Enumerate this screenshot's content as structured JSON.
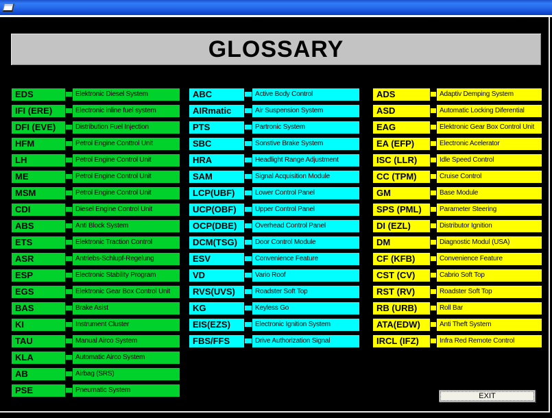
{
  "header": {
    "title": "GLOSSARY"
  },
  "colors": {
    "titlebar_blue": "#2a6fee",
    "banner_gray": "#c3c3c3",
    "column_green": "#00d22b",
    "column_cyan": "#00ffff",
    "column_yellow": "#ffff00",
    "background": "#000000"
  },
  "columns": [
    {
      "color_name": "green",
      "color_hex": "#00d22b",
      "entries": [
        {
          "abbr": "EDS",
          "desc": "Elektronic Diesel System"
        },
        {
          "abbr": "IFI (ERE)",
          "desc": "Electronic inline fuel system"
        },
        {
          "abbr": "DFI (EVE)",
          "desc": "Distribution Fuel Injection"
        },
        {
          "abbr": "HFM",
          "desc": "Petrol Engine Conttrol Unit"
        },
        {
          "abbr": "LH",
          "desc": "Petrol Engine Control Unit"
        },
        {
          "abbr": "ME",
          "desc": "Petrol Engine Control Unit"
        },
        {
          "abbr": "MSM",
          "desc": "Petrol Engine Control Unit"
        },
        {
          "abbr": "CDI",
          "desc": "Diesel Engine Control Unit"
        },
        {
          "abbr": "ABS",
          "desc": "Anti Block System"
        },
        {
          "abbr": "ETS",
          "desc": "Elektronic Traction Control"
        },
        {
          "abbr": "ASR",
          "desc": "Antriebs-Schlupf-Regelung"
        },
        {
          "abbr": "ESP",
          "desc": "Electronic Stability Program"
        },
        {
          "abbr": "EGS",
          "desc": "Elektronic Gear Box Control Unit"
        },
        {
          "abbr": "BAS",
          "desc": "Brake Asist"
        },
        {
          "abbr": "KI",
          "desc": "Instrument Cluster"
        },
        {
          "abbr": "TAU",
          "desc": "Manual Airco System"
        },
        {
          "abbr": "KLA",
          "desc": "Automatic Airco System"
        },
        {
          "abbr": "AB",
          "desc": "Airbag (SRS)"
        },
        {
          "abbr": "PSE",
          "desc": "Pneumatic System"
        }
      ]
    },
    {
      "color_name": "cyan",
      "color_hex": "#00ffff",
      "entries": [
        {
          "abbr": "ABC",
          "desc": "Active Body Control"
        },
        {
          "abbr": "AIRmatic",
          "desc": "Air Suspension System"
        },
        {
          "abbr": "PTS",
          "desc": "Partronic System"
        },
        {
          "abbr": "SBC",
          "desc": "Sonstive Brake System"
        },
        {
          "abbr": "HRA",
          "desc": "Headlight Range Adjustment"
        },
        {
          "abbr": "SAM",
          "desc": "Signal Acquisition Module"
        },
        {
          "abbr": "LCP(UBF)",
          "desc": "Lower Control Panel"
        },
        {
          "abbr": "UCP(OBF)",
          "desc": "Upper Control Panel"
        },
        {
          "abbr": "OCP(DBE)",
          "desc": "Overhead Control Panel"
        },
        {
          "abbr": "DCM(TSG)",
          "desc": "Door Control Module"
        },
        {
          "abbr": "ESV",
          "desc": "Convenience Feature"
        },
        {
          "abbr": "VD",
          "desc": "Vario Roof"
        },
        {
          "abbr": "RVS(UVS)",
          "desc": "Roadster Soft Top"
        },
        {
          "abbr": "KG",
          "desc": "Keyless Go"
        },
        {
          "abbr": "EIS(EZS)",
          "desc": "Electronic Ignition System"
        },
        {
          "abbr": "FBS/FFS",
          "desc": "Drive Authorization Signal"
        }
      ]
    },
    {
      "color_name": "yellow",
      "color_hex": "#ffff00",
      "entries": [
        {
          "abbr": "ADS",
          "desc": "Adaptiv Demping System"
        },
        {
          "abbr": "ASD",
          "desc": "Automatic Locking Diferential"
        },
        {
          "abbr": "EAG",
          "desc": "Elektronic Gear Box Control Unit"
        },
        {
          "abbr": "EA (EFP)",
          "desc": "Electronic Acelerator"
        },
        {
          "abbr": "ISC (LLR)",
          "desc": "Idle Speed Control"
        },
        {
          "abbr": "CC (TPM)",
          "desc": "Cruise Control"
        },
        {
          "abbr": "GM",
          "desc": "Base Module"
        },
        {
          "abbr": "SPS (PML)",
          "desc": "Parameter Steering"
        },
        {
          "abbr": "DI (EZL)",
          "desc": "Distributor Ignition"
        },
        {
          "abbr": "DM",
          "desc": "Diagnostic Modul  (USA)"
        },
        {
          "abbr": "CF (KFB)",
          "desc": "Convenience Feature"
        },
        {
          "abbr": "CST (CV)",
          "desc": "Cabrio Soft Top"
        },
        {
          "abbr": "RST (RV)",
          "desc": "Roadster Soft Top"
        },
        {
          "abbr": "RB (URB)",
          "desc": "Roll Bar"
        },
        {
          "abbr": "ATA(EDW)",
          "desc": "Anti Theft System"
        },
        {
          "abbr": "IRCL (IFZ)",
          "desc": "Infra Red Remote Control"
        }
      ]
    }
  ],
  "exit_button": {
    "label": "EXIT"
  }
}
